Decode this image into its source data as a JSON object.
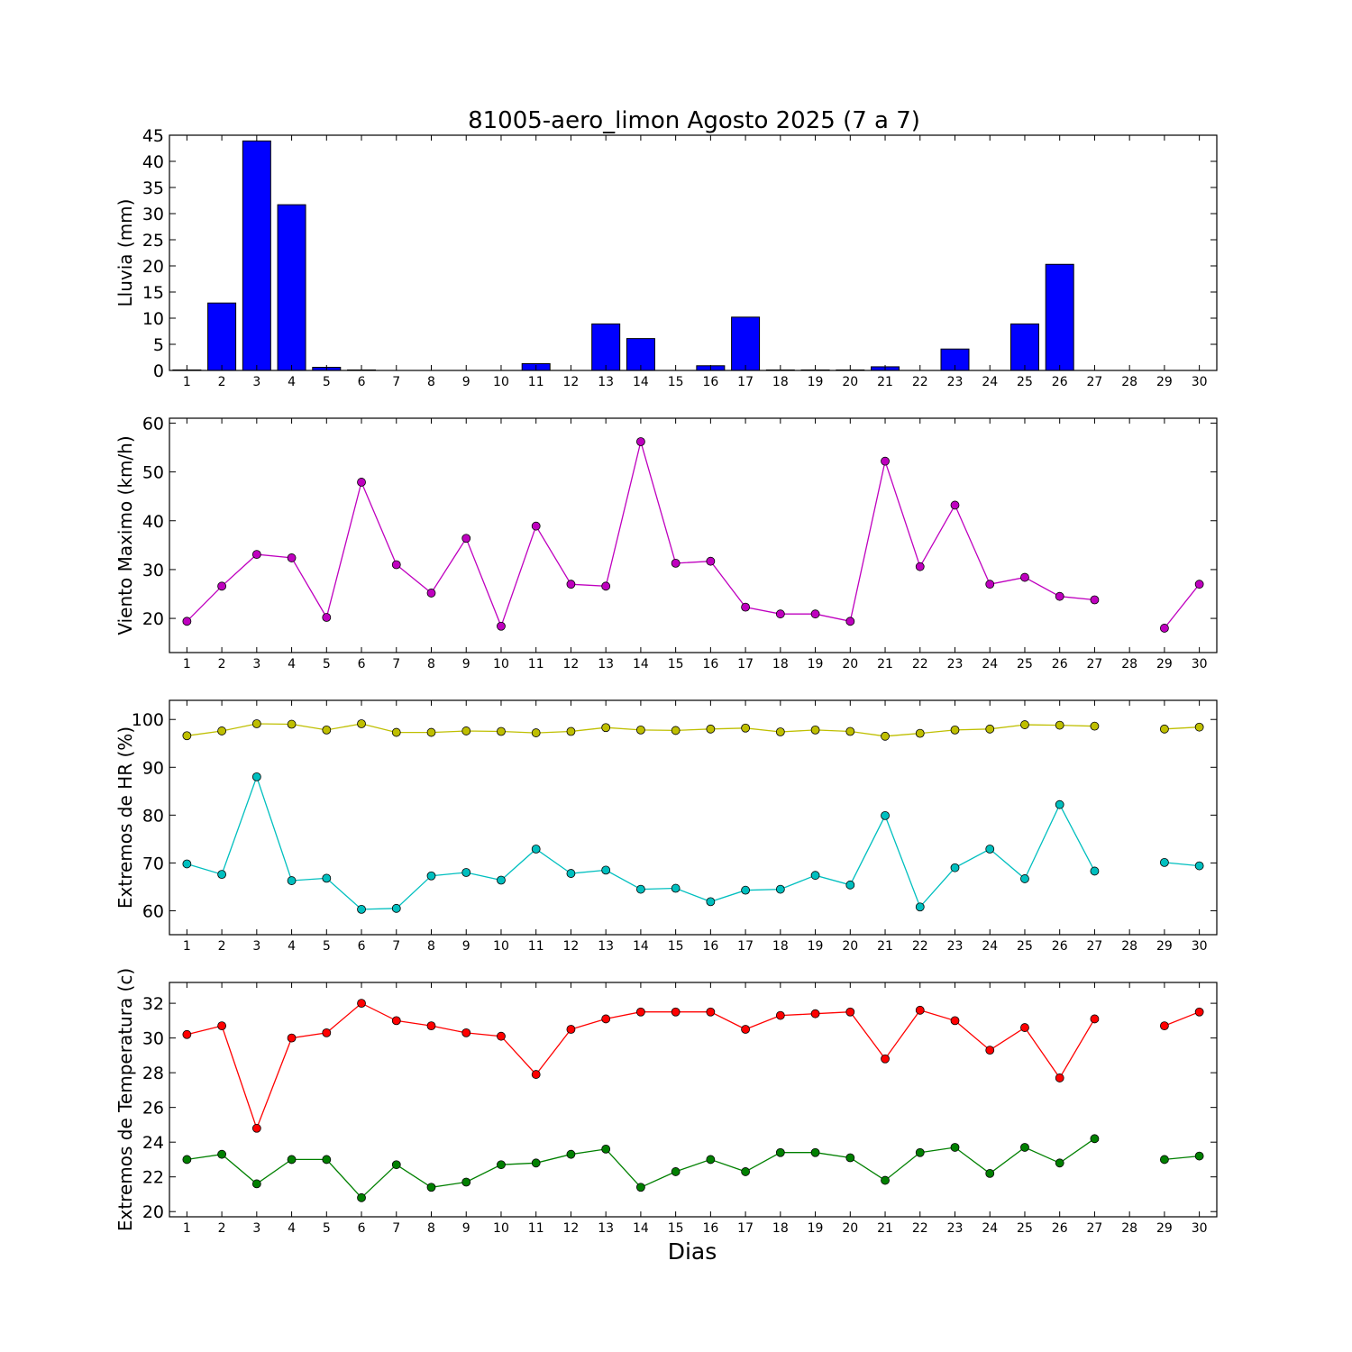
{
  "title": "81005-aero_limon Agosto 2025  (7 a 7)",
  "xlabel": "Dias",
  "colors": {
    "bar": "#0000ff",
    "wind": "#bf00bf",
    "hr_max": "#bfbf00",
    "hr_min": "#00bfbf",
    "temp_max": "#ff0000",
    "temp_min": "#008000"
  },
  "chart_data": [
    {
      "type": "bar",
      "ylabel": "Lluvia (mm)",
      "categories": [
        1,
        2,
        3,
        4,
        5,
        6,
        7,
        8,
        9,
        10,
        11,
        12,
        13,
        14,
        15,
        16,
        17,
        18,
        19,
        20,
        21,
        22,
        23,
        24,
        25,
        26,
        27,
        28,
        29,
        30
      ],
      "ylim": [
        0,
        45
      ],
      "yticks": [
        0,
        5,
        10,
        15,
        20,
        25,
        30,
        35,
        40,
        45
      ],
      "grid": false,
      "series": [
        {
          "values": [
            0.1,
            12.9,
            43.9,
            31.7,
            0.6,
            0.1,
            0,
            0,
            0,
            0,
            1.3,
            0,
            8.9,
            6.1,
            0,
            0.9,
            10.2,
            0.1,
            0.1,
            0.1,
            0.7,
            0,
            4.1,
            0,
            8.9,
            20.3,
            0,
            0,
            0,
            0
          ]
        }
      ]
    },
    {
      "type": "line",
      "ylabel": "Viento Maximo (km/h)",
      "categories": [
        1,
        2,
        3,
        4,
        5,
        6,
        7,
        8,
        9,
        10,
        11,
        12,
        13,
        14,
        15,
        16,
        17,
        18,
        19,
        20,
        21,
        22,
        23,
        24,
        25,
        26,
        27,
        28,
        29,
        30
      ],
      "ylim": [
        13,
        61
      ],
      "yticks": [
        20,
        30,
        40,
        50,
        60
      ],
      "grid": false,
      "series": [
        {
          "values": [
            19.4,
            26.6,
            33.1,
            32.4,
            20.2,
            47.9,
            31.0,
            25.2,
            36.4,
            18.4,
            38.9,
            27.0,
            26.6,
            56.2,
            31.3,
            31.7,
            22.3,
            20.9,
            20.9,
            19.4,
            52.2,
            30.6,
            43.2,
            27.0,
            28.4,
            24.5,
            23.8,
            null,
            18.0,
            27.0
          ]
        }
      ]
    },
    {
      "type": "line",
      "ylabel": "Extremos de HR (%)",
      "categories": [
        1,
        2,
        3,
        4,
        5,
        6,
        7,
        8,
        9,
        10,
        11,
        12,
        13,
        14,
        15,
        16,
        17,
        18,
        19,
        20,
        21,
        22,
        23,
        24,
        25,
        26,
        27,
        28,
        29,
        30
      ],
      "ylim": [
        55,
        104
      ],
      "yticks": [
        60,
        70,
        80,
        90,
        100
      ],
      "grid": false,
      "series": [
        {
          "values": [
            96.6,
            97.6,
            99.1,
            99.0,
            97.8,
            99.1,
            97.3,
            97.3,
            97.6,
            97.5,
            97.2,
            97.5,
            98.3,
            97.8,
            97.7,
            98.0,
            98.2,
            97.4,
            97.8,
            97.5,
            96.5,
            97.1,
            97.8,
            98.0,
            98.9,
            98.8,
            98.6,
            null,
            98.0,
            98.4
          ]
        },
        {
          "values": [
            69.8,
            67.6,
            88.0,
            66.3,
            66.8,
            60.3,
            60.5,
            67.3,
            68.0,
            66.4,
            72.9,
            67.8,
            68.5,
            64.5,
            64.7,
            61.9,
            64.3,
            64.5,
            67.4,
            65.4,
            79.9,
            60.8,
            69.0,
            72.9,
            66.7,
            82.2,
            68.3,
            null,
            70.1,
            69.4
          ]
        }
      ]
    },
    {
      "type": "line",
      "ylabel": "Extremos de Temperatura (c)",
      "categories": [
        1,
        2,
        3,
        4,
        5,
        6,
        7,
        8,
        9,
        10,
        11,
        12,
        13,
        14,
        15,
        16,
        17,
        18,
        19,
        20,
        21,
        22,
        23,
        24,
        25,
        26,
        27,
        28,
        29,
        30
      ],
      "ylim": [
        19.7,
        33.2
      ],
      "yticks": [
        20,
        22,
        24,
        26,
        28,
        30,
        32
      ],
      "grid": false,
      "series": [
        {
          "values": [
            30.2,
            30.7,
            24.8,
            30.0,
            30.3,
            32.0,
            31.0,
            30.7,
            30.3,
            30.1,
            27.9,
            30.5,
            31.1,
            31.5,
            31.5,
            31.5,
            30.5,
            31.3,
            31.4,
            31.5,
            28.8,
            31.6,
            31.0,
            29.3,
            30.6,
            27.7,
            31.1,
            null,
            30.7,
            31.5
          ]
        },
        {
          "values": [
            23.0,
            23.3,
            21.6,
            23.0,
            23.0,
            20.8,
            22.7,
            21.4,
            21.7,
            22.7,
            22.8,
            23.3,
            23.6,
            21.4,
            22.3,
            23.0,
            22.3,
            23.4,
            23.4,
            23.1,
            21.8,
            23.4,
            23.7,
            22.2,
            23.7,
            22.8,
            24.2,
            null,
            23.0,
            23.2
          ]
        }
      ]
    }
  ]
}
